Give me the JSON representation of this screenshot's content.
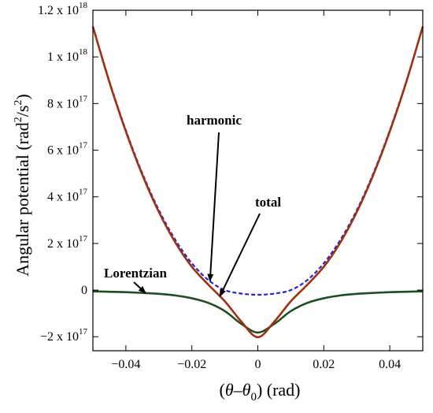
{
  "chart_data": {
    "type": "line",
    "xlabel": "(θ–θ0) (rad)",
    "ylabel": "Angular potential (rad2/s2)",
    "xlim": [
      -0.05,
      0.05
    ],
    "ylim": [
      -2.6e+17,
      1.2e+18
    ],
    "grid": false,
    "x_ticks": [
      {
        "value": -0.04,
        "label": "−0.04"
      },
      {
        "value": -0.02,
        "label": "−0.02"
      },
      {
        "value": 0,
        "label": "0"
      },
      {
        "value": 0.02,
        "label": "0.02"
      },
      {
        "value": 0.04,
        "label": "0.04"
      }
    ],
    "y_ticks": [
      {
        "value": -2e+17,
        "mant": "−2 x 10",
        "exp": "17"
      },
      {
        "value": 0,
        "mant": "0",
        "exp": ""
      },
      {
        "value": 2e+17,
        "mant": "2 x 10",
        "exp": "17"
      },
      {
        "value": 4e+17,
        "mant": "4 x 10",
        "exp": "17"
      },
      {
        "value": 6e+17,
        "mant": "6 x 10",
        "exp": "17"
      },
      {
        "value": 8e+17,
        "mant": "8 x 10",
        "exp": "17"
      },
      {
        "value": 1e+18,
        "mant": "1 x 10",
        "exp": "18"
      },
      {
        "value": 1.2e+18,
        "mant": "1.2 x 10",
        "exp": "18"
      }
    ],
    "x": [
      -0.05,
      -0.045,
      -0.04,
      -0.035,
      -0.03,
      -0.025,
      -0.02,
      -0.015,
      -0.01,
      -0.005,
      0,
      0.005,
      0.01,
      0.015,
      0.02,
      0.025,
      0.03,
      0.035,
      0.04,
      0.045,
      0.05
    ],
    "series": [
      {
        "name": "harmonic",
        "color": "#2222dd",
        "dash": true,
        "values": [
          1.13e+18,
          8.95e+17,
          6.85e+17,
          5e+17,
          3.43e+17,
          2.15e+17,
          1.15e+17,
          4.3e+16,
          0.0,
          -1.5e+16,
          -2e+16,
          -1.5e+16,
          0.0,
          4.3e+16,
          1.15e+17,
          2.15e+17,
          3.43e+17,
          5e+17,
          6.85e+17,
          8.95e+17,
          1.13e+18
        ]
      },
      {
        "name": "total",
        "color": "#a03010",
        "dash": false,
        "values": [
          1.13e+18,
          8.92e+17,
          6.8e+17,
          4.94e+17,
          3.35e+17,
          2.04e+17,
          1e+17,
          2.3e+16,
          -4.8e+16,
          -1.35e+17,
          -2.02e+17,
          -1.35e+17,
          -4.8e+16,
          2.3e+16,
          1e+17,
          2.04e+17,
          3.35e+17,
          4.94e+17,
          6.8e+17,
          8.92e+17,
          1.13e+18
        ]
      },
      {
        "name": "Lorentzian",
        "color": "#1e4d1e",
        "dash": false,
        "values": [
          -5500000000000000.0,
          -7000000000000000.0,
          -9000000000000000.0,
          -1.2e+16,
          -1.6e+16,
          -2.3e+16,
          -3.5e+16,
          -5.5e+16,
          -9e+16,
          -1.45e+17,
          -1.82e+17,
          -1.45e+17,
          -9e+16,
          -5.5e+16,
          -3.5e+16,
          -2.3e+16,
          -1.6e+16,
          -1.2e+16,
          -9000000000000000.0,
          -7000000000000000.0,
          -5500000000000000.0
        ]
      }
    ],
    "annotations": [
      {
        "text": "harmonic",
        "target_series": 0,
        "target_x": -0.0145
      },
      {
        "text": "total",
        "target_series": 1,
        "target_x": -0.0115
      },
      {
        "text": "Lorentzian",
        "target_series": 2,
        "target_x": -0.034
      }
    ]
  }
}
